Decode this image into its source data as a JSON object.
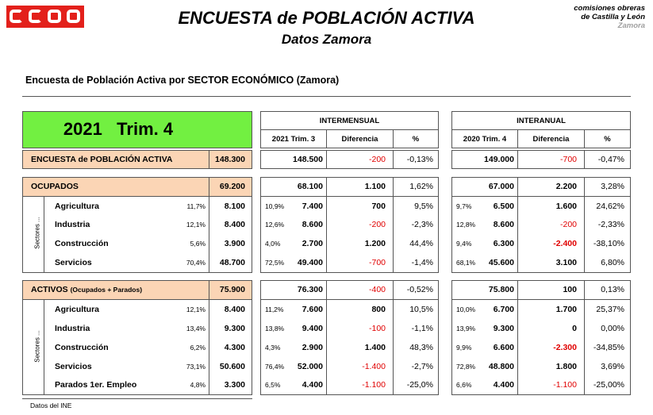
{
  "header": {
    "title": "ENCUESTA de POBLACIÓN ACTIVA",
    "subtitle": "Datos Zamora",
    "org_line1": "comisiones obreras",
    "org_line2": "de Castilla y León",
    "org_line3": "Zamora"
  },
  "section_title": "Encuesta de Población Activa  por  SECTOR ECONÓMICO  (Zamora)",
  "period": "2021   Trim. 4",
  "intermensual": {
    "label": "INTERMENSUAL",
    "col_period": "2021 Trim. 3",
    "col_diff": "Diferencia",
    "col_pct": "%"
  },
  "interanual": {
    "label": "INTERANUAL",
    "col_period": "2020 Trim. 4",
    "col_diff": "Diferencia",
    "col_pct": "%"
  },
  "epa": {
    "label": "ENCUESTA de POBLACIÓN ACTIVA",
    "value": "148.300",
    "im_value": "148.500",
    "im_diff": "-200",
    "im_pct": "-0,13%",
    "ia_value": "149.000",
    "ia_diff": "-700",
    "ia_pct": "-0,47%"
  },
  "ocupados": {
    "label": "OCUPADOS",
    "value": "69.200",
    "im_value": "68.100",
    "im_diff": "1.100",
    "im_pct": "1,62%",
    "ia_value": "67.000",
    "ia_diff": "2.200",
    "ia_pct": "3,28%",
    "sectors_label": "Sectores ...",
    "rows": [
      {
        "label": "Agricultura",
        "share": "11,7%",
        "value": "8.100",
        "im_share": "10,9%",
        "im_value": "7.400",
        "im_diff": "700",
        "im_pct": "9,5%",
        "ia_share": "9,7%",
        "ia_value": "6.500",
        "ia_diff": "1.600",
        "ia_pct": "24,62%"
      },
      {
        "label": "Industria",
        "share": "12,1%",
        "value": "8.400",
        "im_share": "12,6%",
        "im_value": "8.600",
        "im_diff": "-200",
        "im_pct": "-2,3%",
        "ia_share": "12,8%",
        "ia_value": "8.600",
        "ia_diff": "-200",
        "ia_pct": "-2,33%"
      },
      {
        "label": "Construcción",
        "share": "5,6%",
        "value": "3.900",
        "im_share": "4,0%",
        "im_value": "2.700",
        "im_diff": "1.200",
        "im_pct": "44,4%",
        "ia_share": "9,4%",
        "ia_value": "6.300",
        "ia_diff": "-2.400",
        "ia_pct": "-38,10%"
      },
      {
        "label": "Servicios",
        "share": "70,4%",
        "value": "48.700",
        "im_share": "72,5%",
        "im_value": "49.400",
        "im_diff": "-700",
        "im_pct": "-1,4%",
        "ia_share": "68,1%",
        "ia_value": "45.600",
        "ia_diff": "3.100",
        "ia_pct": "6,80%"
      }
    ]
  },
  "activos": {
    "label": "ACTIVOS",
    "label_note": "(Ocupados + Parados)",
    "value": "75.900",
    "im_value": "76.300",
    "im_diff": "-400",
    "im_pct": "-0,52%",
    "ia_value": "75.800",
    "ia_diff": "100",
    "ia_pct": "0,13%",
    "sectors_label": "Sectores ...",
    "rows": [
      {
        "label": "Agricultura",
        "share": "12,1%",
        "value": "8.400",
        "im_share": "11,2%",
        "im_value": "7.600",
        "im_diff": "800",
        "im_pct": "10,5%",
        "ia_share": "10,0%",
        "ia_value": "6.700",
        "ia_diff": "1.700",
        "ia_pct": "25,37%"
      },
      {
        "label": "Industria",
        "share": "13,4%",
        "value": "9.300",
        "im_share": "13,8%",
        "im_value": "9.400",
        "im_diff": "-100",
        "im_pct": "-1,1%",
        "ia_share": "13,9%",
        "ia_value": "9.300",
        "ia_diff": "0",
        "ia_pct": "0,00%"
      },
      {
        "label": "Construcción",
        "share": "6,2%",
        "value": "4.300",
        "im_share": "4,3%",
        "im_value": "2.900",
        "im_diff": "1.400",
        "im_pct": "48,3%",
        "ia_share": "9,9%",
        "ia_value": "6.600",
        "ia_diff": "-2.300",
        "ia_pct": "-34,85%"
      },
      {
        "label": "Servicios",
        "share": "73,1%",
        "value": "50.600",
        "im_share": "76,4%",
        "im_value": "52.000",
        "im_diff": "-1.400",
        "im_pct": "-2,7%",
        "ia_share": "72,8%",
        "ia_value": "48.800",
        "ia_diff": "1.800",
        "ia_pct": "3,69%"
      },
      {
        "label": "Parados 1er. Empleo",
        "share": "4,8%",
        "value": "3.300",
        "im_share": "6,5%",
        "im_value": "4.400",
        "im_diff": "-1.100",
        "im_pct": "-25,0%",
        "ia_share": "6,6%",
        "ia_value": "4.400",
        "ia_diff": "-1.100",
        "ia_pct": "-25,00%"
      }
    ]
  },
  "footer": {
    "source": "Datos del INE"
  },
  "colors": {
    "brand_red": "#e3201b",
    "period_green": "#72f041",
    "highlight": "#fbd5b5",
    "negative": "#e00000"
  }
}
